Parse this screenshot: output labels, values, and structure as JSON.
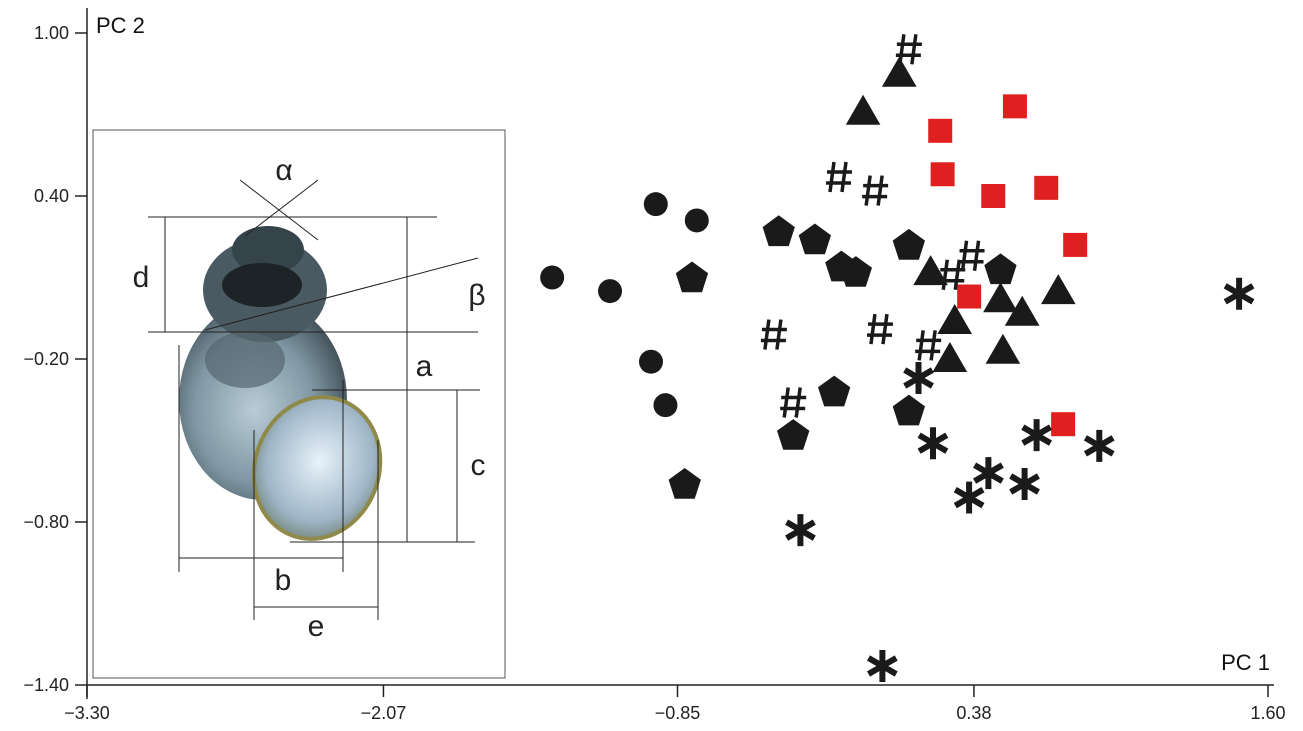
{
  "chart_data": {
    "type": "scatter",
    "x_label": "PC 1",
    "y_label": "PC 2",
    "xlim": [
      -3.3,
      1.6
    ],
    "ylim": [
      -1.4,
      1.0
    ],
    "xticks": [
      {
        "value": -3.3,
        "label": "−3.30"
      },
      {
        "value": -2.07,
        "label": "−2.07"
      },
      {
        "value": -0.85,
        "label": "−0.85"
      },
      {
        "value": 0.38,
        "label": "0.38"
      },
      {
        "value": 1.6,
        "label": "1.60"
      }
    ],
    "yticks": [
      {
        "value": -1.4,
        "label": "−1.40"
      },
      {
        "value": -0.8,
        "label": "−0.80"
      },
      {
        "value": -0.2,
        "label": "−0.20"
      },
      {
        "value": 0.4,
        "label": "0.40"
      },
      {
        "value": 1.0,
        "label": "1.00"
      }
    ],
    "annotations": [
      "α",
      "β",
      "a",
      "b",
      "c",
      "d",
      "e"
    ],
    "series": [
      {
        "marker": "circle",
        "color": "#1a1a1a",
        "x": [
          -1.37,
          -1.13,
          -0.94,
          -0.77,
          -0.96,
          -0.9
        ],
        "values": [
          0.1,
          0.05,
          0.37,
          0.31,
          -0.21,
          -0.37
        ]
      },
      {
        "marker": "pentagon",
        "color": "#1a1a1a",
        "x": [
          -0.79,
          -0.43,
          -0.28,
          -0.17,
          -0.11,
          0.11,
          0.49,
          -0.2,
          0.11,
          -0.37,
          -0.82
        ],
        "values": [
          0.1,
          0.27,
          0.24,
          0.14,
          0.12,
          0.22,
          0.13,
          -0.32,
          -0.39,
          -0.48,
          -0.66
        ]
      },
      {
        "marker": "triangle",
        "color": "#1a1a1a",
        "x": [
          0.07,
          -0.08,
          0.2,
          0.3,
          0.28,
          0.49,
          0.58,
          0.73,
          0.5
        ],
        "values": [
          0.85,
          0.71,
          0.12,
          -0.06,
          -0.2,
          0.02,
          -0.03,
          0.05,
          -0.17
        ]
      },
      {
        "marker": "square",
        "color": "#e02020",
        "x": [
          0.55,
          0.24,
          0.25,
          0.46,
          0.68,
          0.8,
          0.36,
          0.75
        ],
        "values": [
          0.73,
          0.64,
          0.48,
          0.4,
          0.43,
          0.22,
          0.03,
          -0.44
        ]
      },
      {
        "marker": "hash",
        "color": "#1a1a1a",
        "x": [
          0.11,
          -0.18,
          -0.03,
          0.37,
          0.29,
          -0.45,
          -0.01,
          0.19,
          -0.37
        ],
        "values": [
          0.94,
          0.47,
          0.42,
          0.18,
          0.11,
          -0.11,
          -0.09,
          -0.15,
          -0.36
        ]
      },
      {
        "marker": "asterisk",
        "color": "#1a1a1a",
        "x": [
          1.48,
          0.15,
          0.21,
          0.64,
          0.9,
          0.44,
          0.59,
          0.36,
          -0.34,
          0.0
        ],
        "values": [
          0.04,
          -0.27,
          -0.51,
          -0.48,
          -0.52,
          -0.62,
          -0.66,
          -0.71,
          -0.83,
          -1.33
        ]
      }
    ]
  }
}
